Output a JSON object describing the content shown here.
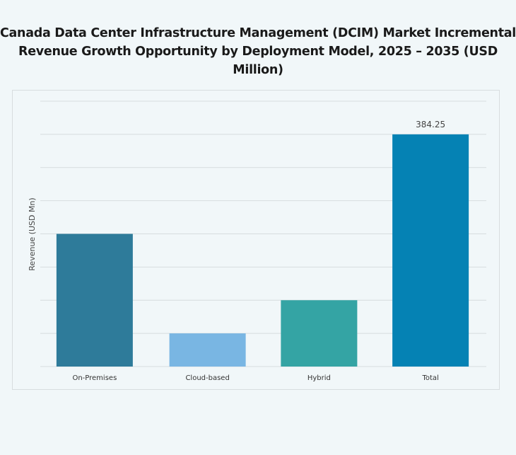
{
  "chart_data": {
    "type": "bar",
    "title": "Canada Data Center Infrastructure  Management (DCIM) Market Incremental Revenue Growth Opportunity by Deployment Model, 2025 – 2035 (USD Million)",
    "xlabel": "",
    "ylabel": "Revenue (USD Mn)",
    "categories": [
      "On-Premises",
      "Cloud-based",
      "Hybrid",
      "Total"
    ],
    "values": [
      219.57,
      54.89,
      109.79,
      384.25
    ],
    "data_labels": [
      "",
      "",
      "",
      "384.25"
    ],
    "colors": [
      "#2e7b9a",
      "#79b6e3",
      "#34a4a4",
      "#0582b4"
    ],
    "ylim": [
      0,
      439.14
    ],
    "grid": true,
    "legend": "none"
  }
}
